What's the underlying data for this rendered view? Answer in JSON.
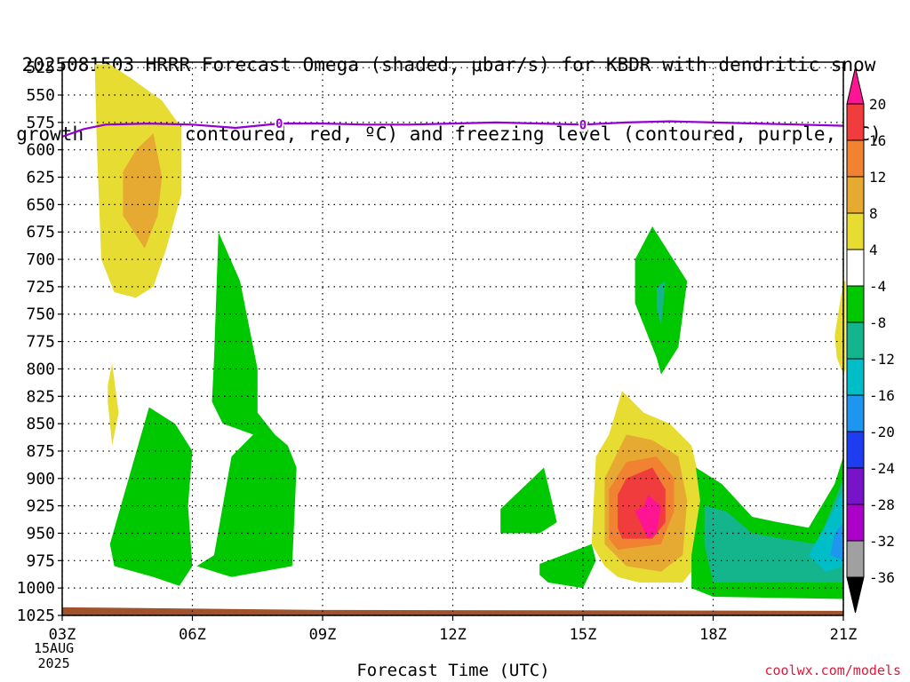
{
  "title": {
    "line1": "2025081503 HRRR Forecast Omega (shaded, μbar/s) for KBDR with dendritic snow",
    "line2": "growth region (contoured, red, ºC) and freezing level (contoured, purple, ºC)"
  },
  "credit": "coolwx.com/models",
  "date_label": [
    "15AUG",
    "2025"
  ],
  "colors": {
    "freezing_level": "#9400d3",
    "ground": "#a0522d"
  },
  "chart_data": {
    "type": "time-height cross section (filled contour)",
    "xlabel": "Forecast Time (UTC)",
    "x_ticks": [
      "03Z",
      "06Z",
      "09Z",
      "12Z",
      "15Z",
      "18Z",
      "21Z"
    ],
    "y_ticks": [
      525,
      550,
      575,
      600,
      625,
      650,
      675,
      700,
      725,
      750,
      775,
      800,
      825,
      850,
      875,
      900,
      925,
      950,
      975,
      1000,
      1025
    ],
    "ylim": [
      1025,
      520
    ],
    "x_range_hours": [
      0,
      18
    ],
    "grid": true,
    "colorbar": {
      "labels": [
        "20",
        "16",
        "12",
        "8",
        "4",
        "-4",
        "-8",
        "-12",
        "-16",
        "-20",
        "-24",
        "-28",
        "-32",
        "-36"
      ],
      "colors": [
        "#ff1493",
        "#f03c3c",
        "#f08232",
        "#e6aa32",
        "#e6dc32",
        "#ffffff",
        "#00c800",
        "#14b48c",
        "#00bec8",
        "#1e96f0",
        "#1e3cf0",
        "#7814c8",
        "#aa00c8",
        "#a0a0a0",
        "#000000"
      ]
    },
    "freezing_level": {
      "label": "0",
      "label_hours": [
        5,
        12
      ],
      "hours": [
        0,
        0.5,
        1,
        2,
        3,
        4,
        5,
        6,
        7,
        8,
        9,
        10,
        11,
        12,
        13,
        14,
        15,
        16,
        17,
        18
      ],
      "pressure": [
        588,
        581,
        577,
        576,
        577,
        580,
        576,
        576,
        577,
        577,
        576,
        575,
        576,
        577,
        575,
        574,
        575,
        576,
        577,
        578
      ]
    },
    "regions": [
      {
        "category": "4 to 8",
        "hours": [
          0.75,
          1.1,
          1.6,
          2.3,
          2.75,
          2.75,
          2.4,
          2.1,
          1.7,
          1.2,
          0.9,
          0.8
        ],
        "pressure": [
          522,
          522,
          535,
          555,
          580,
          640,
          690,
          725,
          735,
          730,
          700,
          600
        ]
      },
      {
        "category": "8 to 12",
        "hours": [
          2.1,
          2.3,
          2.2,
          1.9,
          1.4,
          1.4,
          1.7
        ],
        "pressure": [
          585,
          625,
          660,
          690,
          660,
          620,
          600
        ]
      },
      {
        "category": "4 to 8",
        "hours": [
          1.05,
          1.15,
          1.3,
          1.15,
          1.05
        ],
        "pressure": [
          815,
          795,
          840,
          870,
          830
        ]
      },
      {
        "category": "-4 to -8",
        "hours": [
          2.0,
          2.6,
          3.0,
          2.9,
          3.0,
          2.7,
          2.1,
          1.2,
          1.1
        ],
        "pressure": [
          835,
          850,
          875,
          925,
          980,
          998,
          990,
          980,
          960
        ]
      },
      {
        "category": "-4 to -8",
        "hours": [
          3.6,
          4.1,
          4.5,
          4.5,
          4.9,
          5.2,
          5.4,
          5.3,
          3.9,
          3.1,
          3.5,
          3.9,
          4.4,
          3.7,
          3.45,
          3.5
        ],
        "pressure": [
          675,
          720,
          800,
          840,
          860,
          870,
          890,
          980,
          990,
          980,
          970,
          880,
          860,
          850,
          830,
          790
        ]
      },
      {
        "category": "-4 to -8",
        "hours": [
          10.1,
          11.1,
          11.4,
          11.0,
          10.1
        ],
        "pressure": [
          928,
          890,
          940,
          950,
          950
        ]
      },
      {
        "category": "-4 to -8",
        "hours": [
          11.0,
          12.2,
          12.3,
          12.0,
          11.2,
          11.0
        ],
        "pressure": [
          978,
          960,
          975,
          1000,
          995,
          988
        ]
      },
      {
        "category": "-4 to -8",
        "hours": [
          13.2,
          13.6,
          14.4,
          14.2,
          13.8,
          13.7,
          13.2
        ],
        "pressure": [
          700,
          670,
          720,
          780,
          805,
          790,
          740
        ]
      },
      {
        "category": "-8 to -12",
        "hours": [
          13.7,
          13.9,
          13.8,
          13.7
        ],
        "pressure": [
          725,
          720,
          760,
          745
        ]
      },
      {
        "category": "4 to 8",
        "hours": [
          18.0,
          18.05,
          18.05,
          18.0,
          17.85,
          17.8,
          17.9
        ],
        "pressure": [
          720,
          720,
          800,
          805,
          790,
          770,
          745
        ]
      },
      {
        "category": "4 to 8",
        "hours": [
          12.9,
          13.4,
          14.0,
          14.5,
          14.8,
          14.7,
          14.3,
          13.3,
          12.8,
          12.5,
          12.2,
          12.3,
          12.6
        ],
        "pressure": [
          820,
          840,
          850,
          870,
          920,
          975,
          995,
          995,
          990,
          980,
          960,
          880,
          860
        ]
      },
      {
        "category": "8 to 12",
        "hours": [
          13.0,
          13.6,
          14.2,
          14.4,
          14.3,
          13.8,
          13.0,
          12.5,
          12.5
        ],
        "pressure": [
          860,
          865,
          880,
          920,
          970,
          985,
          980,
          960,
          900
        ]
      },
      {
        "category": "12 to 16",
        "hours": [
          13.0,
          13.7,
          14.1,
          14.1,
          13.8,
          12.8,
          12.6,
          12.6
        ],
        "pressure": [
          885,
          880,
          900,
          930,
          960,
          965,
          955,
          910
        ]
      },
      {
        "category": "16 to 20",
        "hours": [
          13.0,
          13.6,
          13.9,
          13.9,
          13.6,
          12.9,
          12.8,
          12.8
        ],
        "pressure": [
          900,
          890,
          910,
          940,
          955,
          955,
          945,
          915
        ]
      },
      {
        "category": "above 20",
        "hours": [
          13.5,
          13.8,
          13.7,
          13.5,
          13.2,
          13.4
        ],
        "pressure": [
          915,
          925,
          950,
          955,
          930,
          925
        ]
      },
      {
        "category": "-4 to -8",
        "hours": [
          14.6,
          15.2,
          15.9,
          16.5,
          17.2,
          17.8,
          18.0,
          18.0,
          15.0,
          14.5,
          14.5,
          14.7
        ],
        "pressure": [
          890,
          905,
          935,
          940,
          945,
          905,
          880,
          1010,
          1008,
          1000,
          970,
          920
        ]
      },
      {
        "category": "-8 to -12",
        "hours": [
          14.8,
          15.3,
          15.9,
          16.6,
          17.4,
          17.9,
          18.0,
          18.0,
          15.0,
          14.8
        ],
        "pressure": [
          925,
          930,
          950,
          955,
          960,
          910,
          900,
          995,
          995,
          960
        ]
      },
      {
        "category": "-12 to -16",
        "hours": [
          17.7,
          18.0,
          18.0,
          17.6,
          17.2
        ],
        "pressure": [
          935,
          910,
          980,
          985,
          970
        ]
      },
      {
        "category": "-16 to -20",
        "hours": [
          17.8,
          18.0,
          18.0,
          17.7
        ],
        "pressure": [
          950,
          940,
          975,
          970
        ]
      }
    ]
  }
}
